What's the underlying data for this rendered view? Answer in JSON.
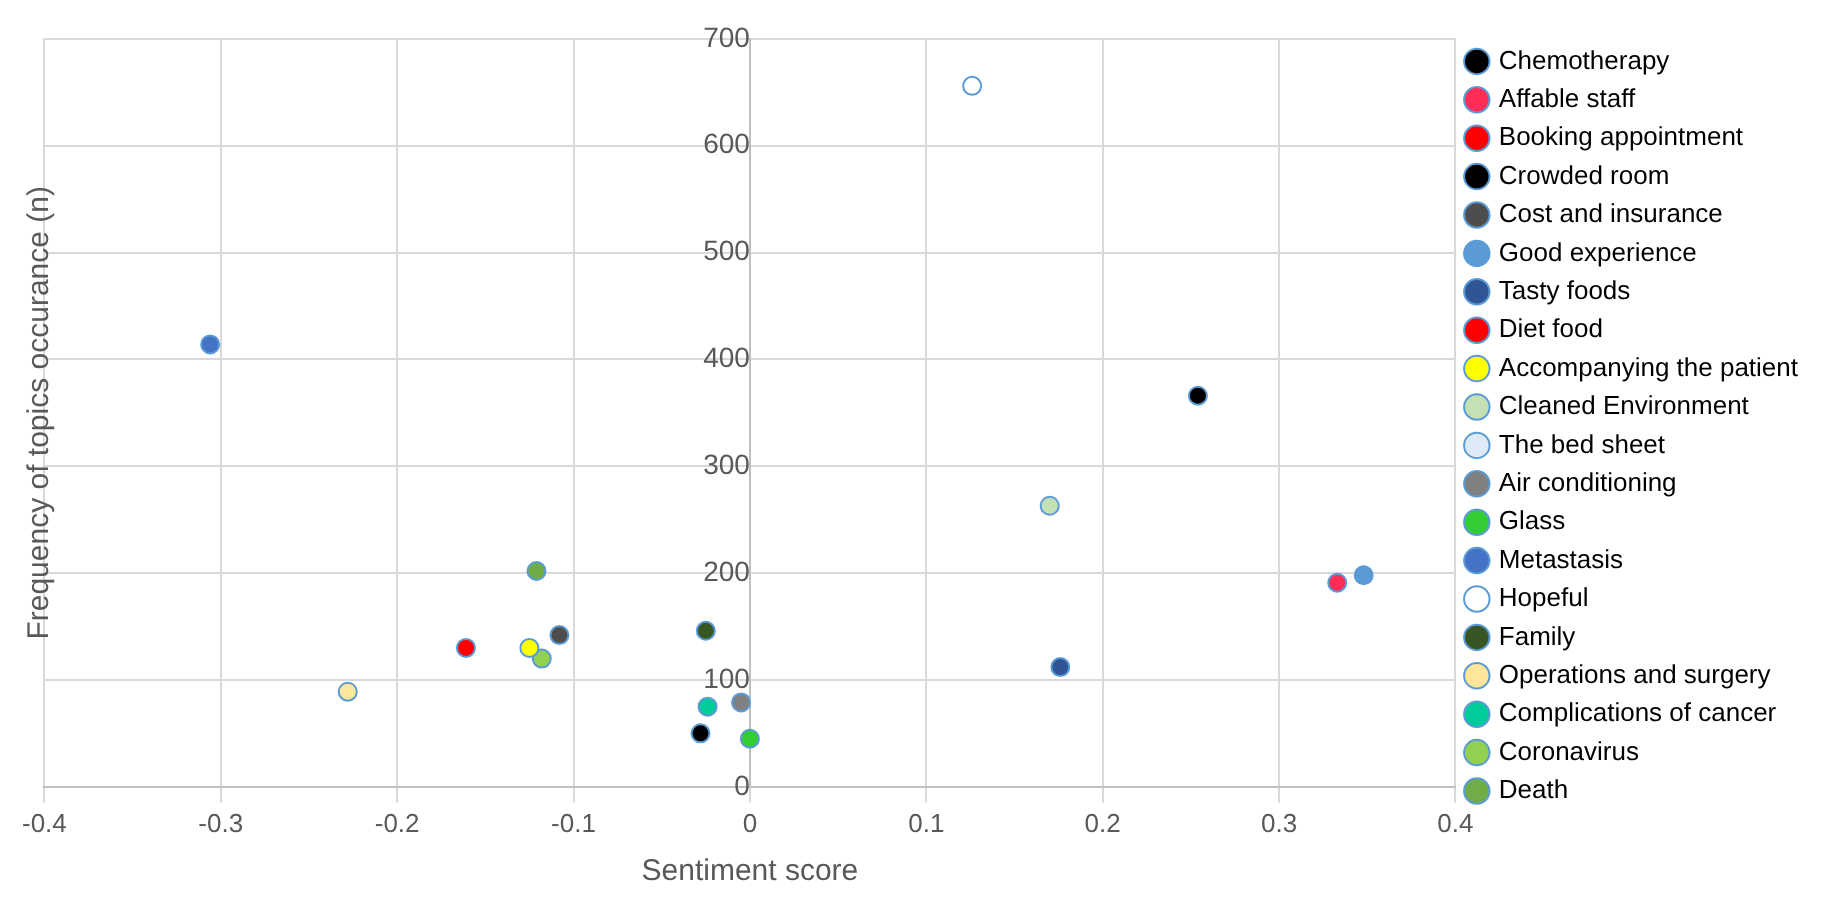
{
  "chart_data": {
    "type": "scatter",
    "xlabel": "Sentiment score",
    "ylabel": "Frequency of topics occurance (n)",
    "xlim": [
      -0.4,
      0.4
    ],
    "xticks": [
      -0.4,
      -0.3,
      -0.2,
      -0.1,
      0,
      0.1,
      0.2,
      0.3,
      0.4
    ],
    "ylim": [
      0,
      700
    ],
    "yticks": [
      0,
      100,
      200,
      300,
      400,
      500,
      600,
      700
    ],
    "grid": true,
    "legend": "right",
    "marker": "circle",
    "series": [
      {
        "name": "Chemotherapy",
        "color": "#000000",
        "x": [
          0.254
        ],
        "values": [
          366
        ]
      },
      {
        "name": "Affable staff",
        "color": "#ff2d55",
        "x": [
          0.333
        ],
        "values": [
          191
        ]
      },
      {
        "name": "Booking appointment",
        "color": "#ff0000",
        "x": [
          -0.161
        ],
        "values": [
          130
        ]
      },
      {
        "name": "Crowded room",
        "color": "#000000",
        "x": [
          -0.028
        ],
        "values": [
          50
        ]
      },
      {
        "name": "Cost and insurance",
        "color": "#4d4d4d",
        "x": [
          -0.108
        ],
        "values": [
          142
        ]
      },
      {
        "name": "Good experience",
        "color": "#5b9bd5",
        "x": [
          0.348
        ],
        "values": [
          198
        ]
      },
      {
        "name": "Tasty foods",
        "color": "#2f5597",
        "x": [
          0.176
        ],
        "values": [
          112
        ]
      },
      {
        "name": "Diet food",
        "color": "#ff0000",
        "x": [
          null
        ],
        "values": [
          null
        ]
      },
      {
        "name": "Accompanying the patient",
        "color": "#ffff00",
        "x": [
          -0.125
        ],
        "values": [
          130
        ]
      },
      {
        "name": "Cleaned Environment",
        "color": "#c5e0b4",
        "x": [
          0.17
        ],
        "values": [
          263
        ]
      },
      {
        "name": "The bed sheet",
        "color": "#deebf7",
        "x": [
          null
        ],
        "values": [
          null
        ]
      },
      {
        "name": "Air conditioning",
        "color": "#808080",
        "x": [
          -0.005
        ],
        "values": [
          79
        ]
      },
      {
        "name": "Glass",
        "color": "#33cc33",
        "x": [
          0
        ],
        "values": [
          45
        ]
      },
      {
        "name": "Metastasis",
        "color": "#4472c4",
        "x": [
          -0.306
        ],
        "values": [
          414
        ]
      },
      {
        "name": "Hopeful",
        "color": "#ffffff",
        "x": [
          0.126
        ],
        "values": [
          656
        ]
      },
      {
        "name": "Family",
        "color": "#375623",
        "x": [
          -0.025
        ],
        "values": [
          146
        ]
      },
      {
        "name": "Operations and surgery",
        "color": "#ffe699",
        "x": [
          -0.228
        ],
        "values": [
          89
        ]
      },
      {
        "name": "Complications of cancer",
        "color": "#00cc99",
        "x": [
          -0.024
        ],
        "values": [
          75
        ]
      },
      {
        "name": "Coronavirus",
        "color": "#92d050",
        "x": [
          -0.118
        ],
        "values": [
          120
        ]
      },
      {
        "name": "Death",
        "color": "#70ad47",
        "x": [
          -0.121
        ],
        "values": [
          202
        ]
      }
    ]
  }
}
